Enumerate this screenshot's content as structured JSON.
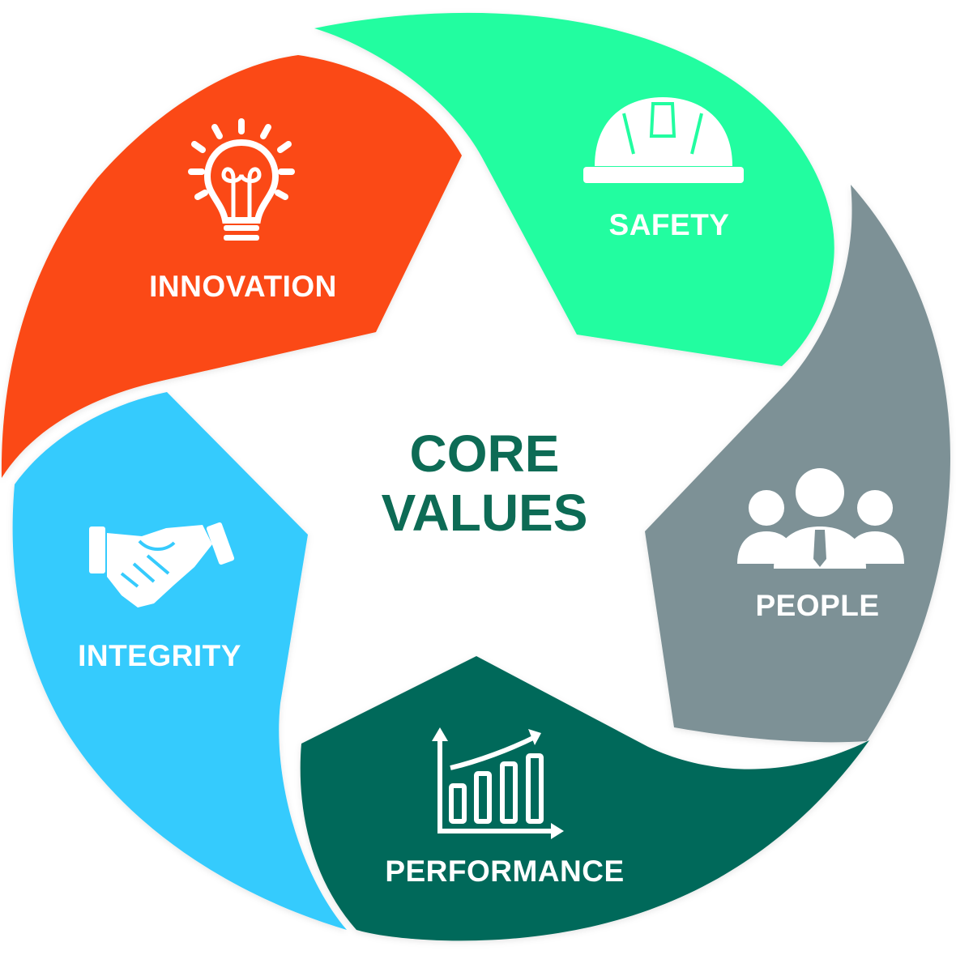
{
  "center": {
    "line1": "CORE",
    "line2": "VALUES",
    "color": "#0d6b55"
  },
  "segments": [
    {
      "id": "innovation",
      "label": "INNOVATION",
      "color": "#fb4a12",
      "icon": "lightbulb-icon"
    },
    {
      "id": "safety",
      "label": "SAFETY",
      "color": "#22fda0",
      "icon": "hard-hat-icon"
    },
    {
      "id": "people",
      "label": "PEOPLE",
      "color": "#7d9196",
      "icon": "people-group-icon"
    },
    {
      "id": "performance",
      "label": "PERFORMANCE",
      "color": "#03695a",
      "icon": "growth-chart-icon"
    },
    {
      "id": "integrity",
      "label": "INTEGRITY",
      "color": "#36cbfd",
      "icon": "handshake-icon"
    }
  ]
}
